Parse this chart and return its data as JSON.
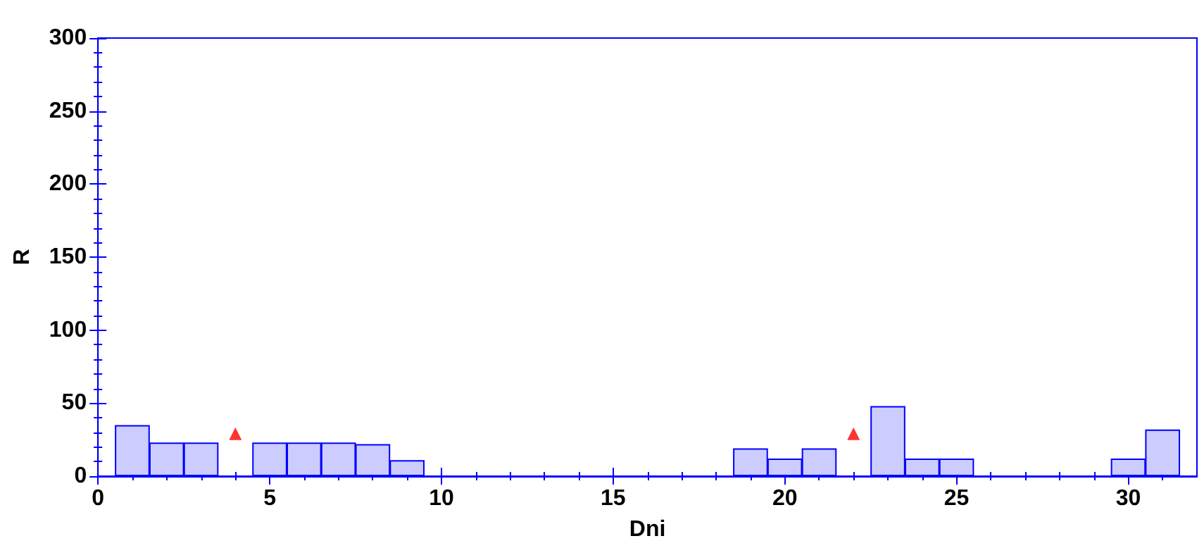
{
  "chart_data": {
    "type": "bar",
    "xlabel": "Dni",
    "ylabel": "R",
    "xlim": [
      0,
      32
    ],
    "xticks": [
      0,
      5,
      10,
      15,
      20,
      25,
      30
    ],
    "ylim": [
      0,
      300
    ],
    "yticks": [
      0,
      50,
      100,
      150,
      200,
      250,
      300
    ],
    "series": [
      {
        "color": "#ccccff",
        "x": [
          1,
          2,
          3,
          5,
          6,
          7,
          8,
          9,
          19,
          20,
          21,
          23,
          24,
          25,
          30,
          31
        ],
        "values": [
          35,
          23,
          23,
          23,
          23,
          23,
          22,
          11,
          19,
          12,
          19,
          48,
          12,
          12,
          12,
          32
        ]
      },
      {
        "type": "scatter",
        "color": "#ff0000",
        "marker": "triangle",
        "x": [
          4,
          22
        ],
        "values": [
          29,
          29
        ]
      }
    ],
    "grid": false
  }
}
